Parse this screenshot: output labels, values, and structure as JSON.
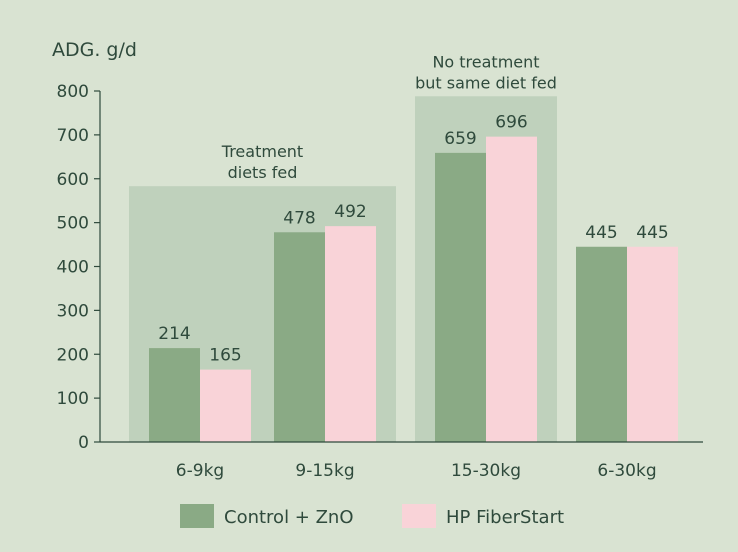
{
  "colors": {
    "background": "#d9e3d2",
    "control": "#8aaa85",
    "fiberstart": "#f9d3d8",
    "shade": "#bfd1bc",
    "axis": "#2f4a3c",
    "text": "#2f4a3c"
  },
  "chart_data": {
    "type": "bar",
    "ylabel": "ADG. g/d",
    "ylim": [
      0,
      800
    ],
    "yticks": [
      0,
      100,
      200,
      300,
      400,
      500,
      600,
      700,
      800
    ],
    "categories": [
      "6-9kg",
      "9-15kg",
      "15-30kg",
      "6-30kg"
    ],
    "series": [
      {
        "name": "Control + ZnO",
        "values": [
          214,
          478,
          659,
          445
        ],
        "color": "#8aaa85"
      },
      {
        "name": "HP FiberStart",
        "values": [
          165,
          492,
          696,
          445
        ],
        "color": "#f9d3d8"
      }
    ],
    "data_labels": true,
    "annotations": [
      {
        "text": [
          "Treatment",
          "diets fed"
        ],
        "categories": [
          "6-9kg",
          "9-15kg"
        ],
        "top": 583
      },
      {
        "text": [
          "No treatment",
          "but same diet fed"
        ],
        "categories": [
          "15-30kg"
        ],
        "top": 788
      }
    ],
    "legend": "bottom",
    "grid": false
  }
}
